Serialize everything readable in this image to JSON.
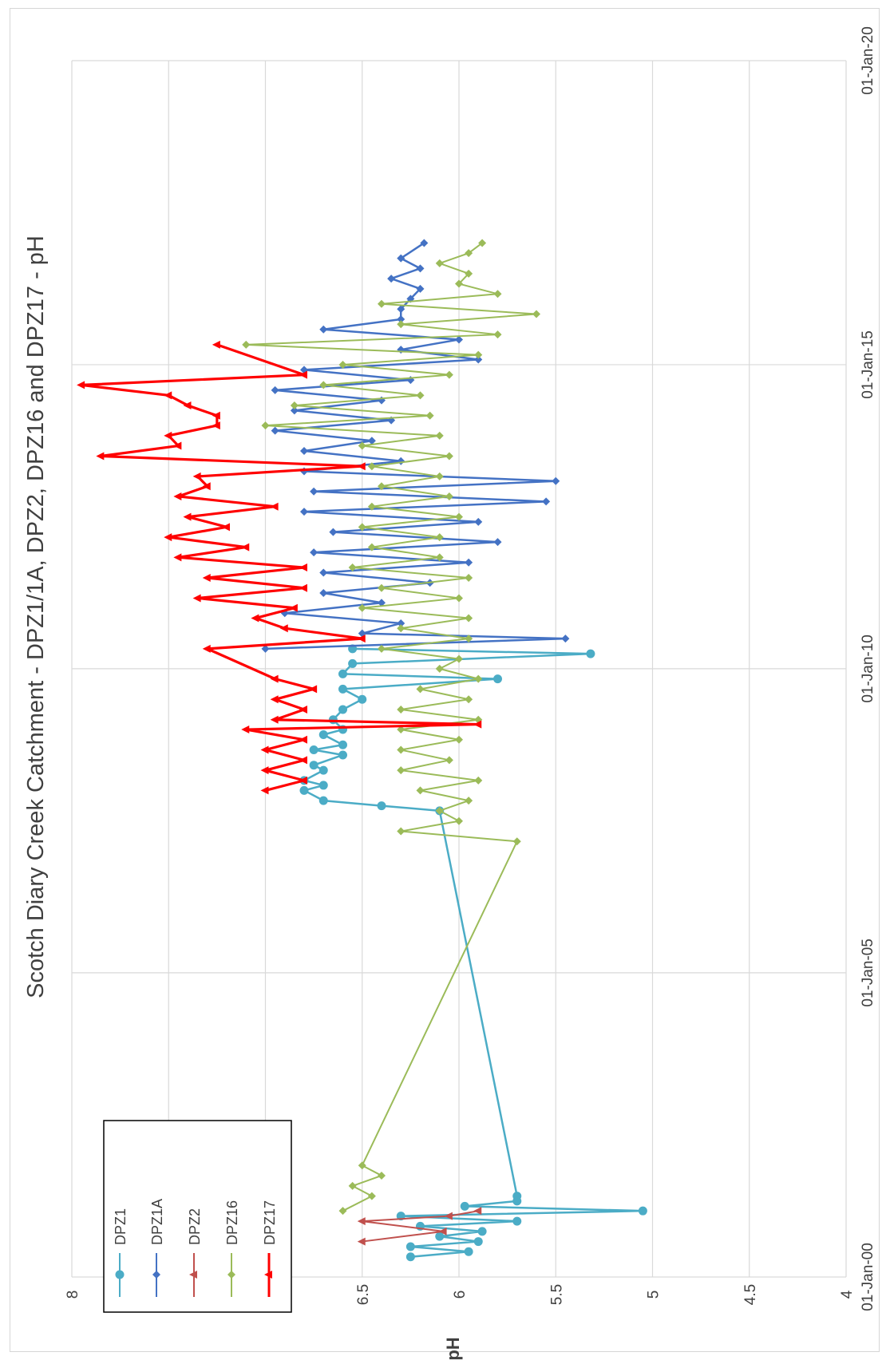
{
  "chart_data": {
    "type": "line",
    "title": "Scotch Diary Creek Catchment - DPZ1/1A, DPZ2, DPZ16 and DPZ17 - pH",
    "xlabel": "",
    "ylabel": "pH",
    "ylim": [
      4,
      8
    ],
    "yticks": [
      "4",
      "4.5",
      "5",
      "5.5",
      "6",
      "6.5",
      "7",
      "7.5",
      "8"
    ],
    "xlim": [
      "2000-01-01",
      "2020-01-01"
    ],
    "xticks": [
      "01-Jan-00",
      "01-Jan-05",
      "01-Jan-10",
      "01-Jan-15",
      "01-Jan-20"
    ],
    "orientation": "rotated-90-ccw",
    "grid": true,
    "legend_position": "bottom-left",
    "series": [
      {
        "name": "DPZ1",
        "color": "#4bacc6",
        "marker": "circle",
        "points": [
          [
            "2000-05-01",
            6.25
          ],
          [
            "2000-06-01",
            5.95
          ],
          [
            "2000-07-01",
            6.25
          ],
          [
            "2000-08-01",
            5.9
          ],
          [
            "2000-09-01",
            6.1
          ],
          [
            "2000-10-01",
            5.88
          ],
          [
            "2000-11-01",
            6.2
          ],
          [
            "2000-12-01",
            5.7
          ],
          [
            "2001-01-01",
            6.3
          ],
          [
            "2001-02-01",
            5.05
          ],
          [
            "2001-03-01",
            5.97
          ],
          [
            "2001-04-01",
            5.7
          ],
          [
            "2001-05-01",
            5.7
          ],
          [
            "2007-09-01",
            6.1
          ],
          [
            "2007-10-01",
            6.4
          ],
          [
            "2007-11-01",
            6.7
          ],
          [
            "2008-01-01",
            6.8
          ],
          [
            "2008-02-01",
            6.7
          ],
          [
            "2008-03-01",
            6.8
          ],
          [
            "2008-05-01",
            6.7
          ],
          [
            "2008-06-01",
            6.75
          ],
          [
            "2008-08-01",
            6.6
          ],
          [
            "2008-09-01",
            6.75
          ],
          [
            "2008-10-01",
            6.6
          ],
          [
            "2008-12-01",
            6.7
          ],
          [
            "2009-01-01",
            6.6
          ],
          [
            "2009-03-01",
            6.65
          ],
          [
            "2009-05-01",
            6.6
          ],
          [
            "2009-07-01",
            6.5
          ],
          [
            "2009-09-01",
            6.6
          ],
          [
            "2009-11-01",
            5.8
          ],
          [
            "2009-12-01",
            6.6
          ],
          [
            "2010-02-01",
            6.55
          ],
          [
            "2010-04-01",
            5.32
          ],
          [
            "2010-05-01",
            6.55
          ]
        ]
      },
      {
        "name": "DPZ1A",
        "color": "#4472c4",
        "marker": "diamond",
        "points": [
          [
            "2010-05-01",
            7.0
          ],
          [
            "2010-07-01",
            5.45
          ],
          [
            "2010-08-01",
            6.5
          ],
          [
            "2010-10-01",
            6.3
          ],
          [
            "2010-12-01",
            6.9
          ],
          [
            "2011-02-01",
            6.4
          ],
          [
            "2011-04-01",
            6.7
          ],
          [
            "2011-06-01",
            6.15
          ],
          [
            "2011-08-01",
            6.7
          ],
          [
            "2011-10-01",
            5.95
          ],
          [
            "2011-12-01",
            6.75
          ],
          [
            "2012-02-01",
            5.8
          ],
          [
            "2012-04-01",
            6.65
          ],
          [
            "2012-06-01",
            5.9
          ],
          [
            "2012-08-01",
            6.8
          ],
          [
            "2012-10-01",
            5.55
          ],
          [
            "2012-12-01",
            6.75
          ],
          [
            "2013-02-01",
            5.5
          ],
          [
            "2013-04-01",
            6.8
          ],
          [
            "2013-06-01",
            6.3
          ],
          [
            "2013-08-01",
            6.8
          ],
          [
            "2013-10-01",
            6.45
          ],
          [
            "2013-12-01",
            6.95
          ],
          [
            "2014-02-01",
            6.35
          ],
          [
            "2014-04-01",
            6.85
          ],
          [
            "2014-06-01",
            6.4
          ],
          [
            "2014-08-01",
            6.95
          ],
          [
            "2014-10-01",
            6.25
          ],
          [
            "2014-12-01",
            6.8
          ],
          [
            "2015-02-01",
            5.9
          ],
          [
            "2015-04-01",
            6.3
          ],
          [
            "2015-06-01",
            6.0
          ],
          [
            "2015-08-01",
            6.7
          ],
          [
            "2015-10-01",
            6.3
          ],
          [
            "2015-12-01",
            6.3
          ],
          [
            "2016-02-01",
            6.25
          ],
          [
            "2016-04-01",
            6.2
          ],
          [
            "2016-06-01",
            6.35
          ],
          [
            "2016-08-01",
            6.2
          ],
          [
            "2016-10-01",
            6.3
          ],
          [
            "2017-01-01",
            6.18
          ]
        ]
      },
      {
        "name": "DPZ2",
        "color": "#c0504d",
        "marker": "triangle",
        "points": [
          [
            "2000-08-01",
            6.5
          ],
          [
            "2000-10-01",
            6.08
          ],
          [
            "2000-12-01",
            6.5
          ],
          [
            "2001-01-01",
            6.05
          ],
          [
            "2001-02-01",
            5.9
          ]
        ]
      },
      {
        "name": "DPZ16",
        "color": "#9bbb59",
        "marker": "diamond",
        "points": [
          [
            "2001-02-01",
            6.6
          ],
          [
            "2001-05-01",
            6.45
          ],
          [
            "2001-07-01",
            6.55
          ],
          [
            "2001-09-01",
            6.4
          ],
          [
            "2001-11-01",
            6.5
          ],
          [
            "2007-03-01",
            5.7
          ],
          [
            "2007-05-01",
            6.3
          ],
          [
            "2007-07-01",
            6.0
          ],
          [
            "2007-09-01",
            6.1
          ],
          [
            "2007-11-01",
            5.95
          ],
          [
            "2008-01-01",
            6.2
          ],
          [
            "2008-03-01",
            5.9
          ],
          [
            "2008-05-01",
            6.3
          ],
          [
            "2008-07-01",
            6.05
          ],
          [
            "2008-09-01",
            6.3
          ],
          [
            "2008-11-01",
            6.0
          ],
          [
            "2009-01-01",
            6.3
          ],
          [
            "2009-03-01",
            5.9
          ],
          [
            "2009-05-01",
            6.3
          ],
          [
            "2009-07-01",
            5.95
          ],
          [
            "2009-09-01",
            6.2
          ],
          [
            "2009-11-01",
            5.9
          ],
          [
            "2010-01-01",
            6.1
          ],
          [
            "2010-03-01",
            6.0
          ],
          [
            "2010-05-01",
            6.4
          ],
          [
            "2010-07-01",
            5.95
          ],
          [
            "2010-09-01",
            6.3
          ],
          [
            "2010-11-01",
            5.95
          ],
          [
            "2011-01-01",
            6.5
          ],
          [
            "2011-03-01",
            6.0
          ],
          [
            "2011-05-01",
            6.4
          ],
          [
            "2011-07-01",
            5.95
          ],
          [
            "2011-09-01",
            6.55
          ],
          [
            "2011-11-01",
            6.1
          ],
          [
            "2012-01-01",
            6.45
          ],
          [
            "2012-03-01",
            6.1
          ],
          [
            "2012-05-01",
            6.5
          ],
          [
            "2012-07-01",
            6.0
          ],
          [
            "2012-09-01",
            6.45
          ],
          [
            "2012-11-01",
            6.05
          ],
          [
            "2013-01-01",
            6.4
          ],
          [
            "2013-03-01",
            6.1
          ],
          [
            "2013-05-01",
            6.45
          ],
          [
            "2013-07-01",
            6.05
          ],
          [
            "2013-09-01",
            6.5
          ],
          [
            "2013-11-01",
            6.1
          ],
          [
            "2014-01-01",
            7.0
          ],
          [
            "2014-03-01",
            6.15
          ],
          [
            "2014-05-01",
            6.85
          ],
          [
            "2014-07-01",
            6.2
          ],
          [
            "2014-09-01",
            6.7
          ],
          [
            "2014-11-01",
            6.05
          ],
          [
            "2015-01-01",
            6.6
          ],
          [
            "2015-03-01",
            5.9
          ],
          [
            "2015-05-01",
            7.1
          ],
          [
            "2015-07-01",
            5.8
          ],
          [
            "2015-09-01",
            6.3
          ],
          [
            "2015-11-01",
            5.6
          ],
          [
            "2016-01-01",
            6.4
          ],
          [
            "2016-03-01",
            5.8
          ],
          [
            "2016-05-01",
            6.0
          ],
          [
            "2016-07-01",
            5.95
          ],
          [
            "2016-09-01",
            6.1
          ],
          [
            "2016-11-01",
            5.95
          ],
          [
            "2017-01-01",
            5.88
          ]
        ]
      },
      {
        "name": "DPZ17",
        "color": "#ff0000",
        "marker": "triangle",
        "points": [
          [
            "2008-01-01",
            7.0
          ],
          [
            "2008-03-01",
            6.8
          ],
          [
            "2008-05-01",
            7.0
          ],
          [
            "2008-07-01",
            6.8
          ],
          [
            "2008-09-01",
            7.0
          ],
          [
            "2008-11-01",
            6.8
          ],
          [
            "2009-01-01",
            7.1
          ],
          [
            "2009-02-01",
            5.9
          ],
          [
            "2009-03-01",
            6.95
          ],
          [
            "2009-05-01",
            6.8
          ],
          [
            "2009-07-01",
            6.95
          ],
          [
            "2009-09-01",
            6.75
          ],
          [
            "2009-11-01",
            6.95
          ],
          [
            "2010-05-01",
            7.3
          ],
          [
            "2010-07-01",
            6.5
          ],
          [
            "2010-09-01",
            6.9
          ],
          [
            "2010-11-01",
            7.05
          ],
          [
            "2011-01-01",
            6.85
          ],
          [
            "2011-03-01",
            7.35
          ],
          [
            "2011-05-01",
            6.8
          ],
          [
            "2011-07-01",
            7.3
          ],
          [
            "2011-09-01",
            6.8
          ],
          [
            "2011-11-01",
            7.45
          ],
          [
            "2012-01-01",
            7.1
          ],
          [
            "2012-03-01",
            7.5
          ],
          [
            "2012-05-01",
            7.2
          ],
          [
            "2012-07-01",
            7.4
          ],
          [
            "2012-09-01",
            6.95
          ],
          [
            "2012-11-01",
            7.45
          ],
          [
            "2013-01-01",
            7.3
          ],
          [
            "2013-03-01",
            7.35
          ],
          [
            "2013-05-01",
            6.5
          ],
          [
            "2013-07-01",
            7.85
          ],
          [
            "2013-09-01",
            7.45
          ],
          [
            "2013-11-01",
            7.5
          ],
          [
            "2014-01-01",
            7.25
          ],
          [
            "2014-03-01",
            7.25
          ],
          [
            "2014-05-01",
            7.4
          ],
          [
            "2014-07-01",
            7.5
          ],
          [
            "2014-09-01",
            7.95
          ],
          [
            "2014-11-01",
            6.8
          ],
          [
            "2015-05-01",
            7.25
          ]
        ]
      }
    ]
  }
}
